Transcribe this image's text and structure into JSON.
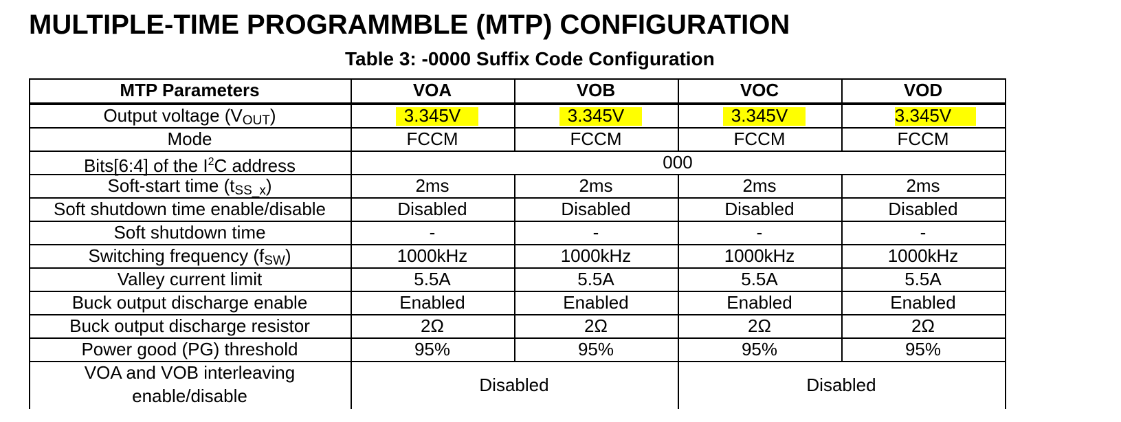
{
  "page": {
    "heading": "MULTIPLE-TIME PROGRAMMBLE (MTP) CONFIGURATION",
    "caption": "Table 3: -0000 Suffix Code Configuration"
  },
  "table": {
    "headers": [
      "MTP Parameters",
      "VOA",
      "VOB",
      "VOC",
      "VOD"
    ],
    "rows": [
      {
        "param": {
          "text": "Output voltage (V",
          "sub": "OUT",
          "tail": ")"
        },
        "values": [
          "3.345V",
          "3.345V",
          "3.345V",
          "3.345V"
        ],
        "highlight": true
      },
      {
        "param": {
          "text": "Mode"
        },
        "values": [
          "FCCM",
          "FCCM",
          "FCCM",
          "FCCM"
        ]
      },
      {
        "param": {
          "text": "Bits[6:4] of the I",
          "sup": "2",
          "tail": "C address"
        },
        "merged_value": "000"
      },
      {
        "param": {
          "text": "Soft-start time (t",
          "sub": "SS_x",
          "tail": ")"
        },
        "values": [
          "2ms",
          "2ms",
          "2ms",
          "2ms"
        ]
      },
      {
        "param": {
          "text": "Soft shutdown time enable/disable"
        },
        "values": [
          "Disabled",
          "Disabled",
          "Disabled",
          "Disabled"
        ]
      },
      {
        "param": {
          "text": "Soft shutdown time"
        },
        "values": [
          "-",
          "-",
          "-",
          "-"
        ]
      },
      {
        "param": {
          "text": "Switching frequency (f",
          "sub": "SW",
          "tail": ")"
        },
        "values": [
          "1000kHz",
          "1000kHz",
          "1000kHz",
          "1000kHz"
        ]
      },
      {
        "param": {
          "text": "Valley current limit"
        },
        "values": [
          "5.5A",
          "5.5A",
          "5.5A",
          "5.5A"
        ]
      },
      {
        "param": {
          "text": "Buck output discharge enable"
        },
        "values": [
          "Enabled",
          "Enabled",
          "Enabled",
          "Enabled"
        ]
      },
      {
        "param": {
          "text": "Buck output discharge resistor"
        },
        "values": [
          "2Ω",
          "2Ω",
          "2Ω",
          "2Ω"
        ]
      },
      {
        "param": {
          "text": "Power good (PG) threshold"
        },
        "values": [
          "95%",
          "95%",
          "95%",
          "95%"
        ]
      },
      {
        "param": {
          "lines": [
            "VOA and VOB interleaving",
            "enable/disable"
          ]
        },
        "pair_values": [
          "Disabled",
          "Disabled"
        ]
      }
    ]
  },
  "colors": {
    "highlight": "#ffff00",
    "rule": "#000000"
  }
}
